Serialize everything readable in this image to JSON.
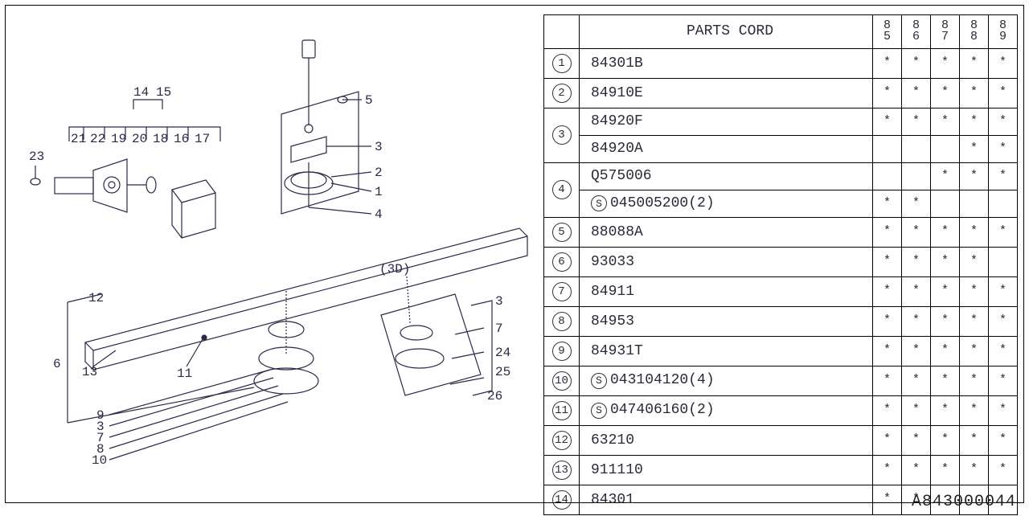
{
  "page_code": "A843000044",
  "table": {
    "header": {
      "title": "PARTS CORD",
      "years": [
        "85",
        "86",
        "87",
        "88",
        "89"
      ]
    },
    "rows": [
      {
        "idx": "1",
        "code": "84301B",
        "special": false,
        "marks": [
          "*",
          "*",
          "*",
          "*",
          "*"
        ],
        "rowspan": 1
      },
      {
        "idx": "2",
        "code": "84910E",
        "special": false,
        "marks": [
          "*",
          "*",
          "*",
          "*",
          "*"
        ],
        "rowspan": 1
      },
      {
        "idx": "3",
        "code": "84920F",
        "special": false,
        "marks": [
          "*",
          "*",
          "*",
          "*",
          "*"
        ],
        "rowspan": 2
      },
      {
        "idx": "",
        "code": "84920A",
        "special": false,
        "marks": [
          "",
          "",
          "",
          "*",
          "*"
        ],
        "rowspan": 0
      },
      {
        "idx": "4",
        "code": "Q575006",
        "special": false,
        "marks": [
          "",
          "",
          "*",
          "*",
          "*"
        ],
        "rowspan": 2
      },
      {
        "idx": "",
        "code": "045005200(2)",
        "special": true,
        "marks": [
          "*",
          "*",
          "",
          "",
          ""
        ],
        "rowspan": 0
      },
      {
        "idx": "5",
        "code": "88088A",
        "special": false,
        "marks": [
          "*",
          "*",
          "*",
          "*",
          "*"
        ],
        "rowspan": 1
      },
      {
        "idx": "6",
        "code": "93033",
        "special": false,
        "marks": [
          "*",
          "*",
          "*",
          "*",
          ""
        ],
        "rowspan": 1
      },
      {
        "idx": "7",
        "code": "84911",
        "special": false,
        "marks": [
          "*",
          "*",
          "*",
          "*",
          "*"
        ],
        "rowspan": 1
      },
      {
        "idx": "8",
        "code": "84953",
        "special": false,
        "marks": [
          "*",
          "*",
          "*",
          "*",
          "*"
        ],
        "rowspan": 1
      },
      {
        "idx": "9",
        "code": "84931T",
        "special": false,
        "marks": [
          "*",
          "*",
          "*",
          "*",
          "*"
        ],
        "rowspan": 1
      },
      {
        "idx": "10",
        "code": "043104120(4)",
        "special": true,
        "marks": [
          "*",
          "*",
          "*",
          "*",
          "*"
        ],
        "rowspan": 1
      },
      {
        "idx": "11",
        "code": "047406160(2)",
        "special": true,
        "marks": [
          "*",
          "*",
          "*",
          "*",
          "*"
        ],
        "rowspan": 1
      },
      {
        "idx": "12",
        "code": "63210",
        "special": false,
        "marks": [
          "*",
          "*",
          "*",
          "*",
          "*"
        ],
        "rowspan": 1
      },
      {
        "idx": "13",
        "code": "911110",
        "special": false,
        "marks": [
          "*",
          "*",
          "*",
          "*",
          "*"
        ],
        "rowspan": 1
      },
      {
        "idx": "14",
        "code": "84301",
        "special": false,
        "marks": [
          "*",
          "*",
          "",
          "",
          ""
        ],
        "rowspan": 1
      }
    ]
  },
  "labels": {
    "l23": "23",
    "l21": "21",
    "l22": "22",
    "l19": "19",
    "l20": "20",
    "l18": "18",
    "l16": "16",
    "l17": "17",
    "l14": "14",
    "l15": "15",
    "l5": "5",
    "l3a": "3",
    "l2": "2",
    "l1": "1",
    "l4": "4",
    "l12": "12",
    "l6": "6",
    "l13": "13",
    "l11": "11",
    "l9": "9",
    "l3b": "3",
    "l7a": "7",
    "l8": "8",
    "l10": "10",
    "l3c": "3",
    "l7b": "7",
    "l24": "24",
    "l25": "25",
    "l26": "26",
    "l3d": "(3D)"
  },
  "colors": {
    "line": "#2a2a4a",
    "fill": "#ffffff"
  }
}
